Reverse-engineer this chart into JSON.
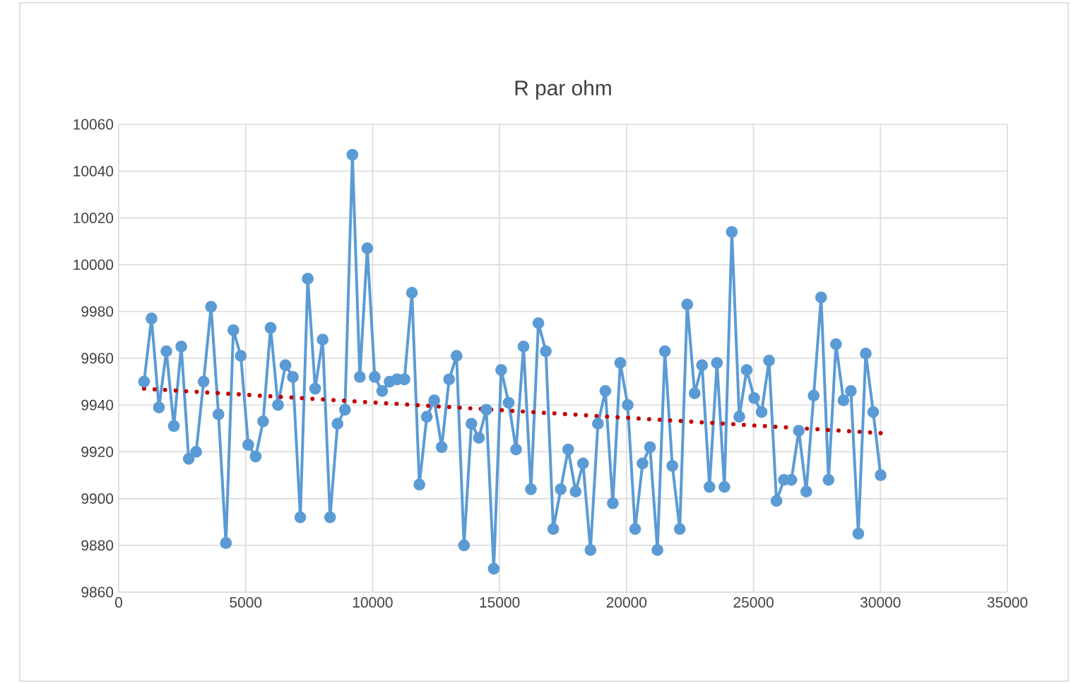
{
  "chart_data": {
    "type": "line",
    "title": "R par ohm",
    "xlim": [
      0,
      35000
    ],
    "xticks": [
      0,
      5000,
      10000,
      15000,
      20000,
      25000,
      30000,
      35000
    ],
    "ylim": [
      9860,
      10060
    ],
    "yticks": [
      9860,
      9880,
      9900,
      9920,
      9940,
      9960,
      9980,
      10000,
      10020,
      10040,
      10060
    ],
    "grid": true,
    "series": [
      {
        "color": "#5b9bd5",
        "marker": "circle",
        "line_style": "solid",
        "x": [
          1000,
          1293,
          1586,
          1879,
          2172,
          2465,
          2758,
          3051,
          3344,
          3637,
          3930,
          4223,
          4516,
          4809,
          5102,
          5395,
          5688,
          5981,
          6274,
          6567,
          6860,
          7153,
          7446,
          7739,
          8032,
          8325,
          8618,
          8911,
          9204,
          9497,
          9790,
          10083,
          10376,
          10669,
          10962,
          11255,
          11548,
          11841,
          12134,
          12427,
          12720,
          13013,
          13306,
          13599,
          13892,
          14185,
          14478,
          14771,
          15064,
          15357,
          15650,
          15943,
          16236,
          16529,
          16822,
          17115,
          17408,
          17701,
          17994,
          18287,
          18580,
          18873,
          19166,
          19459,
          19752,
          20045,
          20338,
          20631,
          20924,
          21217,
          21510,
          21803,
          22096,
          22389,
          22682,
          22975,
          23268,
          23561,
          23854,
          24147,
          24440,
          24733,
          25026,
          25319,
          25612,
          25905,
          26198,
          26491,
          26784,
          27077,
          27370,
          27663,
          27956,
          28249,
          28542,
          28835,
          29128,
          29421,
          29714,
          30007
        ],
        "values": [
          9950,
          9977,
          9939,
          9963,
          9931,
          9965,
          9917,
          9920,
          9950,
          9982,
          9936,
          9881,
          9972,
          9961,
          9923,
          9918,
          9933,
          9973,
          9940,
          9957,
          9952,
          9892,
          9994,
          9947,
          9968,
          9892,
          9932,
          9938,
          10047,
          9952,
          10007,
          9952,
          9946,
          9950,
          9951,
          9951,
          9988,
          9906,
          9935,
          9942,
          9922,
          9951,
          9961,
          9880,
          9932,
          9926,
          9938,
          9870,
          9955,
          9941,
          9921,
          9965,
          9904,
          9975,
          9963,
          9887,
          9904,
          9921,
          9903,
          9915,
          9878,
          9932,
          9946,
          9898,
          9958,
          9940,
          9887,
          9915,
          9922,
          9878,
          9963,
          9914,
          9887,
          9983,
          9945,
          9957,
          9905,
          9958,
          9905,
          10014,
          9935,
          9955,
          9943,
          9937,
          9959,
          9899,
          9908,
          9908,
          9929,
          9903,
          9944,
          9986,
          9908,
          9966,
          9942,
          9946,
          9885,
          9962,
          9937,
          9910
        ]
      },
      {
        "type": "line",
        "color": "#c00000",
        "marker": "none",
        "line_style": "dotted",
        "x": [
          1000,
          30007
        ],
        "values": [
          9947,
          9928
        ]
      }
    ]
  }
}
